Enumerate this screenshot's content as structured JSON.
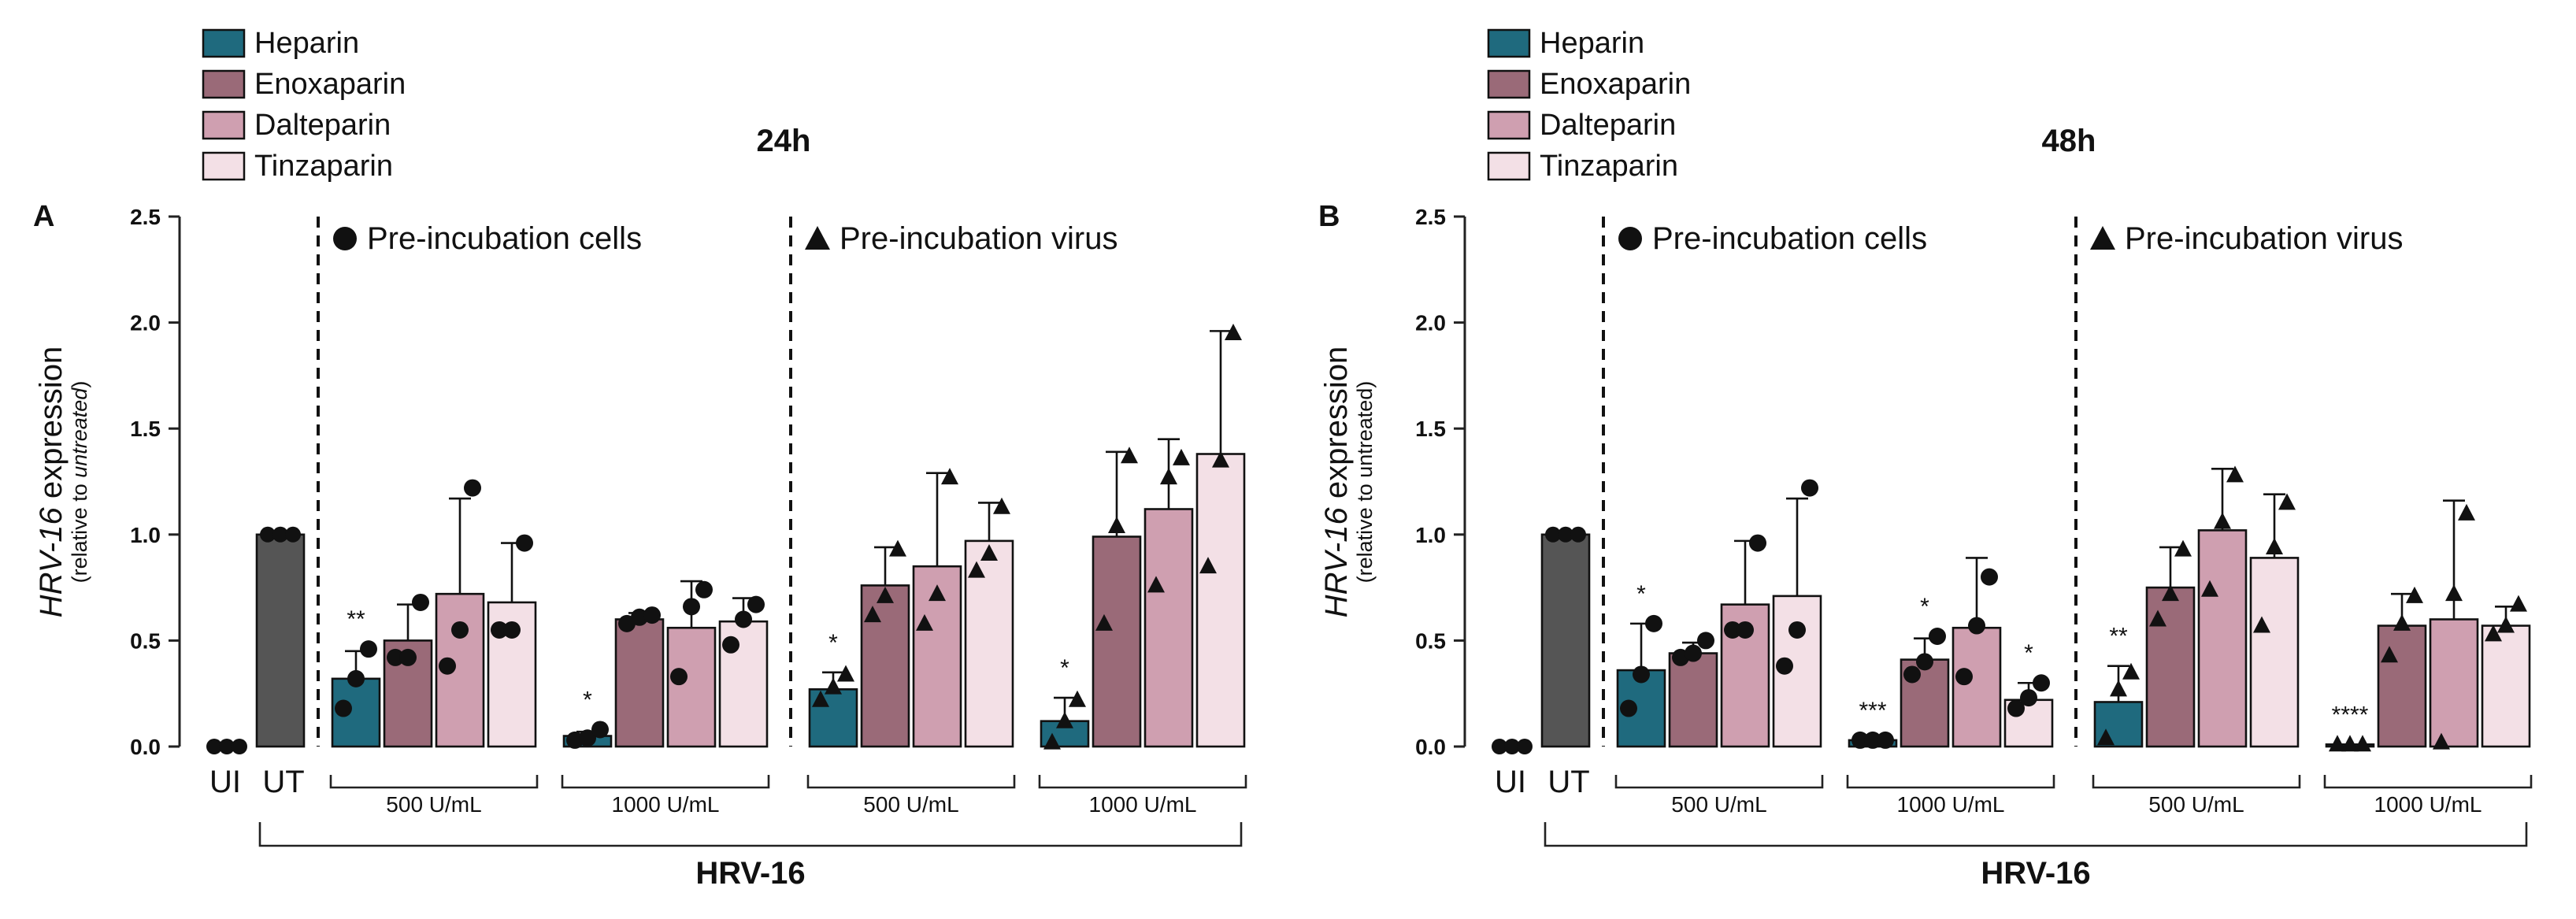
{
  "chart_data": [
    {
      "panel_label": "A",
      "title": "24h",
      "type": "bar",
      "ylabel_main": "HRV-16 expression",
      "ylabel_italic_part": "HRV-16",
      "ylabel_rest": " expression",
      "ylabel_sub": "(relative to untreated)",
      "ylabel_sub_pre": "(relative to ",
      "ylabel_sub_ital": "untreated",
      "ylabel_sub_post": ")",
      "ylim": [
        0,
        2.5
      ],
      "yticks": [
        "0.0",
        "0.5",
        "1.0",
        "1.5",
        "2.0",
        "2.5"
      ],
      "section_labels": [
        "Pre-incubation cells",
        "Pre-incubation virus"
      ],
      "dose_labels": [
        "500 U/mL",
        "1000 U/mL",
        "500 U/mL",
        "1000 U/mL"
      ],
      "xlabel": "HRV-16",
      "controls": [
        {
          "label": "UI",
          "value": 0.0,
          "points": [
            0,
            0,
            0
          ]
        },
        {
          "label": "UT",
          "value": 1.0,
          "points": [
            1,
            1,
            1
          ]
        }
      ],
      "groups": [
        {
          "section": "cells",
          "dose": "500 U/mL",
          "marker": "circle",
          "significance": "**",
          "values": [
            0.32,
            0.5,
            0.72,
            0.68
          ],
          "errors": [
            0.13,
            0.17,
            0.45,
            0.28
          ],
          "points": [
            [
              0.18,
              0.32,
              0.46
            ],
            [
              0.42,
              0.42,
              0.68
            ],
            [
              0.38,
              0.55,
              1.22
            ],
            [
              0.55,
              0.55,
              0.96
            ]
          ]
        },
        {
          "section": "cells",
          "dose": "1000 U/mL",
          "marker": "circle",
          "significance": "*",
          "values": [
            0.05,
            0.6,
            0.56,
            0.59
          ],
          "errors": [
            0.02,
            0.03,
            0.22,
            0.11
          ],
          "points": [
            [
              0.03,
              0.04,
              0.08
            ],
            [
              0.58,
              0.61,
              0.62
            ],
            [
              0.33,
              0.66,
              0.74
            ],
            [
              0.48,
              0.6,
              0.67
            ]
          ]
        },
        {
          "section": "virus",
          "dose": "500 U/mL",
          "marker": "triangle",
          "significance": "*",
          "values": [
            0.27,
            0.76,
            0.85,
            0.97
          ],
          "errors": [
            0.08,
            0.18,
            0.44,
            0.18
          ],
          "points": [
            [
              0.22,
              0.28,
              0.34
            ],
            [
              0.62,
              0.71,
              0.93
            ],
            [
              0.58,
              0.72,
              1.27
            ],
            [
              0.83,
              0.91,
              1.13
            ]
          ]
        },
        {
          "section": "virus",
          "dose": "1000 U/mL",
          "marker": "triangle",
          "significance": "*",
          "values": [
            0.12,
            0.99,
            1.12,
            1.38
          ],
          "errors": [
            0.11,
            0.4,
            0.33,
            0.58
          ],
          "points": [
            [
              0.02,
              0.12,
              0.22
            ],
            [
              0.58,
              1.04,
              1.37
            ],
            [
              0.76,
              1.27,
              1.36
            ],
            [
              0.85,
              1.35,
              1.95
            ]
          ]
        }
      ]
    },
    {
      "panel_label": "B",
      "title": "48h",
      "type": "bar",
      "ylabel_main": "HRV-16 expression",
      "ylabel_italic_part": "HRV-16",
      "ylabel_rest": " expression",
      "ylabel_sub": "(relative to untreated)",
      "ylabel_sub_pre": "(relative to untreated)",
      "ylabel_sub_ital": "",
      "ylabel_sub_post": "",
      "ylim": [
        0,
        2.5
      ],
      "yticks": [
        "0.0",
        "0.5",
        "1.0",
        "1.5",
        "2.0",
        "2.5"
      ],
      "section_labels": [
        "Pre-incubation cells",
        "Pre-incubation virus"
      ],
      "dose_labels": [
        "500 U/mL",
        "1000 U/mL",
        "500 U/mL",
        "1000 U/mL"
      ],
      "xlabel": "HRV-16",
      "controls": [
        {
          "label": "UI",
          "value": 0.0,
          "points": [
            0,
            0,
            0
          ]
        },
        {
          "label": "UT",
          "value": 1.0,
          "points": [
            1,
            1,
            1
          ]
        }
      ],
      "groups": [
        {
          "section": "cells",
          "dose": "500 U/mL",
          "marker": "circle",
          "significance": [
            "*",
            "",
            "",
            ""
          ],
          "values": [
            0.36,
            0.44,
            0.67,
            0.71
          ],
          "errors": [
            0.22,
            0.05,
            0.3,
            0.46
          ],
          "points": [
            [
              0.18,
              0.34,
              0.58
            ],
            [
              0.42,
              0.44,
              0.5
            ],
            [
              0.55,
              0.55,
              0.96
            ],
            [
              0.38,
              0.55,
              1.22
            ]
          ]
        },
        {
          "section": "cells",
          "dose": "1000 U/mL",
          "marker": "circle",
          "significance": [
            "***",
            "*",
            "",
            "*"
          ],
          "values": [
            0.03,
            0.41,
            0.56,
            0.22
          ],
          "errors": [
            0.0,
            0.1,
            0.33,
            0.08
          ],
          "points": [
            [
              0.03,
              0.03,
              0.03
            ],
            [
              0.34,
              0.4,
              0.52
            ],
            [
              0.33,
              0.57,
              0.8
            ],
            [
              0.18,
              0.23,
              0.3
            ]
          ]
        },
        {
          "section": "virus",
          "dose": "500 U/mL",
          "marker": "triangle",
          "significance": [
            "**",
            "",
            "",
            ""
          ],
          "values": [
            0.21,
            0.75,
            1.02,
            0.89
          ],
          "errors": [
            0.17,
            0.19,
            0.29,
            0.3
          ],
          "points": [
            [
              0.04,
              0.27,
              0.35
            ],
            [
              0.6,
              0.72,
              0.93
            ],
            [
              0.74,
              1.06,
              1.28
            ],
            [
              0.57,
              0.94,
              1.15
            ]
          ]
        },
        {
          "section": "virus",
          "dose": "1000 U/mL",
          "marker": "triangle",
          "significance": [
            "****",
            "",
            "",
            ""
          ],
          "values": [
            0.01,
            0.57,
            0.6,
            0.57
          ],
          "errors": [
            0.0,
            0.15,
            0.56,
            0.09
          ],
          "points": [
            [
              0.01,
              0.01,
              0.01
            ],
            [
              0.43,
              0.58,
              0.71
            ],
            [
              0.02,
              0.72,
              1.1
            ],
            [
              0.53,
              0.57,
              0.67
            ]
          ]
        }
      ]
    }
  ],
  "legend": [
    {
      "name": "Heparin",
      "color": "#1f6a7e"
    },
    {
      "name": "Enoxaparin",
      "color": "#9a6a78"
    },
    {
      "name": "Dalteparin",
      "color": "#cf9fb0"
    },
    {
      "name": "Tinzaparin",
      "color": "#f3e0e6"
    }
  ],
  "colors": {
    "control_ui": "#ffffff",
    "control_ut": "#555555"
  }
}
